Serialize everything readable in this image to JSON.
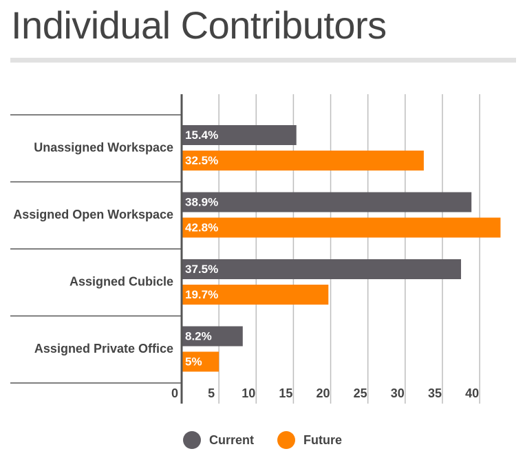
{
  "title": "Individual Contributors",
  "colors": {
    "current": "#5f5c62",
    "future": "#ff8200",
    "grid": "#bdbdbd",
    "axis": "#555555",
    "text": "#444444"
  },
  "legend": {
    "current": "Current",
    "future": "Future"
  },
  "chart_data": {
    "type": "bar",
    "orientation": "horizontal",
    "title": "Individual Contributors",
    "categories": [
      "Unassigned Workspace",
      "Assigned Open Workspace",
      "Assigned Cubicle",
      "Assigned Private Office"
    ],
    "series": [
      {
        "name": "Current",
        "values": [
          15.4,
          38.9,
          37.5,
          8.2
        ],
        "labels": [
          "15.4%",
          "38.9%",
          "37.5%",
          "8.2%"
        ]
      },
      {
        "name": "Future",
        "values": [
          32.5,
          42.8,
          19.7,
          5
        ],
        "labels": [
          "32.5%",
          "42.8%",
          "19.7%",
          "5%"
        ]
      }
    ],
    "xlim": [
      0,
      43.5
    ],
    "xticks": [
      0,
      5,
      10,
      15,
      20,
      25,
      30,
      35,
      40
    ],
    "xlabel": "",
    "ylabel": "",
    "grid": true,
    "legend_position": "bottom"
  }
}
